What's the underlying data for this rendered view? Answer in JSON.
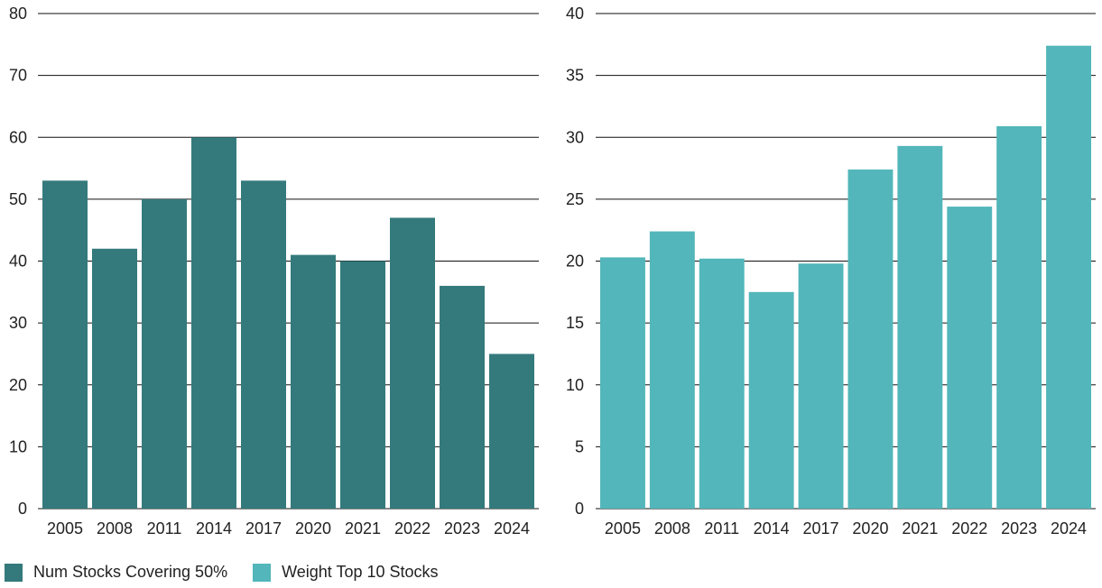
{
  "chart_data": [
    {
      "type": "bar",
      "categories": [
        "2005",
        "2008",
        "2011",
        "2014",
        "2017",
        "2020",
        "2021",
        "2022",
        "2023",
        "2024"
      ],
      "series": [
        {
          "name": "Num Stocks Covering 50%",
          "values": [
            53,
            42,
            50,
            60,
            53,
            41,
            40,
            47,
            36,
            25
          ]
        }
      ],
      "ylim": [
        0,
        80
      ],
      "yticks": [
        0,
        10,
        20,
        30,
        40,
        50,
        60,
        70,
        80
      ],
      "ytick_labels": [
        "0",
        "10",
        "20",
        "30",
        "40",
        "50",
        "60",
        "70",
        "80"
      ],
      "grid": true,
      "color": "#347a7c"
    },
    {
      "type": "bar",
      "categories": [
        "2005",
        "2008",
        "2011",
        "2014",
        "2017",
        "2020",
        "2021",
        "2022",
        "2023",
        "2024"
      ],
      "series": [
        {
          "name": "Weight Top 10 Stocks",
          "values": [
            20.3,
            22.4,
            20.2,
            17.5,
            19.8,
            27.4,
            29.3,
            24.4,
            30.9,
            37.4
          ]
        }
      ],
      "ylim": [
        0,
        40
      ],
      "yticks": [
        0,
        5,
        10,
        15,
        20,
        25,
        30,
        35,
        40
      ],
      "ytick_labels": [
        "0",
        "5",
        "10",
        "15",
        "20",
        "25",
        "30",
        "35",
        "40"
      ],
      "grid": true,
      "color": "#52b6ba"
    }
  ],
  "legend": {
    "items": [
      {
        "label": "Num Stocks Covering 50%",
        "color": "#347a7c"
      },
      {
        "label": "Weight Top 10 Stocks",
        "color": "#52b6ba"
      }
    ]
  }
}
